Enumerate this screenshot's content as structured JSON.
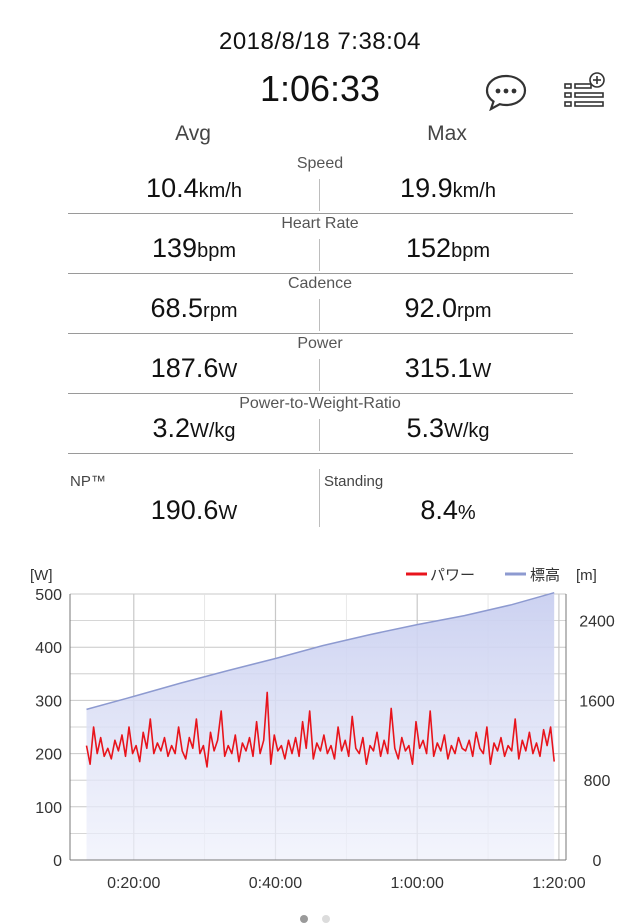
{
  "header": {
    "datetime": "2018/8/18 7:38:04",
    "duration": "1:06:33",
    "comment_icon": "comment-bubble-icon",
    "list_icon": "list-add-icon"
  },
  "columns": {
    "avg": "Avg",
    "max": "Max"
  },
  "metrics": [
    {
      "label": "Speed",
      "avg": "10.4",
      "max": "19.9",
      "unit": "km/h"
    },
    {
      "label": "Heart Rate",
      "avg": "139",
      "max": "152",
      "unit": "bpm"
    },
    {
      "label": "Cadence",
      "avg": "68.5",
      "max": "92.0",
      "unit": "rpm"
    },
    {
      "label": "Power",
      "avg": "187.6",
      "max": "315.1",
      "unit": "W"
    },
    {
      "label": "Power-to-Weight-Ratio",
      "avg": "3.2",
      "max": "5.3",
      "unit": "W/kg"
    }
  ],
  "np": {
    "label": "NP™",
    "value": "190.6",
    "unit": "W"
  },
  "standing": {
    "label": "Standing",
    "value": "8.4",
    "unit": "%"
  },
  "colors": {
    "power": "#e8141c",
    "elevation": "#8d9ad0",
    "grid": "#c8c8c8"
  },
  "chart_data": {
    "type": "line",
    "y_left_label": "[W]",
    "y_right_label": "[m]",
    "legend": [
      "パワー",
      "標高"
    ],
    "legend_position": "top-right",
    "x_ticks": [
      "0:20:00",
      "0:40:00",
      "1:00:00",
      "1:20:00"
    ],
    "x_tick_seconds": [
      1200,
      2400,
      3600,
      4800
    ],
    "xlim": [
      660,
      4860
    ],
    "y_left_ticks": [
      0,
      100,
      200,
      300,
      400,
      500
    ],
    "ylim_left": [
      0,
      500
    ],
    "y_right_ticks": [
      0,
      800,
      1600,
      2400
    ],
    "ylim_right": [
      0,
      2667
    ],
    "grid": true,
    "series": [
      {
        "name": "標高",
        "axis": "right",
        "type": "area",
        "x": [
          800,
          1200,
          1600,
          2000,
          2400,
          2800,
          3200,
          3600,
          4000,
          4400,
          4760
        ],
        "values": [
          1510,
          1640,
          1775,
          1900,
          2020,
          2150,
          2260,
          2360,
          2450,
          2560,
          2680
        ]
      },
      {
        "name": "パワー",
        "axis": "left",
        "type": "line",
        "x": [
          800,
          830,
          860,
          890,
          920,
          950,
          980,
          1010,
          1040,
          1070,
          1100,
          1130,
          1160,
          1190,
          1220,
          1250,
          1280,
          1310,
          1340,
          1370,
          1400,
          1430,
          1460,
          1490,
          1520,
          1550,
          1580,
          1610,
          1640,
          1670,
          1700,
          1730,
          1760,
          1790,
          1820,
          1850,
          1880,
          1910,
          1940,
          1970,
          2000,
          2030,
          2060,
          2090,
          2120,
          2150,
          2180,
          2210,
          2240,
          2270,
          2300,
          2330,
          2360,
          2390,
          2420,
          2450,
          2480,
          2510,
          2540,
          2570,
          2600,
          2630,
          2660,
          2690,
          2720,
          2750,
          2780,
          2810,
          2840,
          2870,
          2900,
          2930,
          2960,
          2990,
          3020,
          3050,
          3080,
          3110,
          3140,
          3170,
          3200,
          3230,
          3260,
          3290,
          3320,
          3350,
          3380,
          3410,
          3440,
          3470,
          3500,
          3530,
          3560,
          3590,
          3620,
          3650,
          3680,
          3710,
          3740,
          3770,
          3800,
          3830,
          3860,
          3890,
          3920,
          3950,
          3980,
          4010,
          4040,
          4070,
          4100,
          4130,
          4160,
          4190,
          4220,
          4250,
          4280,
          4310,
          4340,
          4370,
          4400,
          4430,
          4460,
          4490,
          4520,
          4550,
          4580,
          4610,
          4640,
          4670,
          4700,
          4730,
          4760
        ],
        "values": [
          215,
          180,
          250,
          200,
          230,
          195,
          210,
          190,
          225,
          205,
          235,
          195,
          250,
          200,
          215,
          185,
          240,
          210,
          265,
          200,
          220,
          205,
          230,
          195,
          215,
          200,
          250,
          205,
          190,
          230,
          210,
          265,
          200,
          215,
          175,
          240,
          205,
          225,
          280,
          195,
          215,
          200,
          235,
          185,
          220,
          205,
          230,
          195,
          260,
          200,
          225,
          315,
          180,
          235,
          205,
          215,
          190,
          225,
          200,
          230,
          195,
          260,
          210,
          280,
          190,
          220,
          205,
          235,
          200,
          215,
          190,
          250,
          205,
          225,
          195,
          270,
          210,
          200,
          230,
          180,
          215,
          205,
          240,
          195,
          225,
          200,
          285,
          210,
          190,
          230,
          205,
          215,
          180,
          260,
          210,
          225,
          200,
          280,
          195,
          220,
          205,
          235,
          190,
          215,
          200,
          230,
          210,
          205,
          225,
          195,
          240,
          210,
          200,
          250,
          180,
          220,
          205,
          230,
          195,
          215,
          205,
          265,
          190,
          225,
          205,
          240,
          200,
          220,
          195,
          245,
          215,
          250,
          185
        ]
      }
    ]
  }
}
